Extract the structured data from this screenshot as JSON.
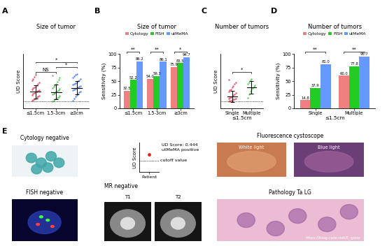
{
  "chart_data": [
    {
      "type": "strip",
      "panel": "A",
      "title": "Size of tumor",
      "ylabel": "UD Score",
      "categories": [
        "≤1.5cm",
        "1.5-3cm",
        "≥3cm"
      ],
      "ylim": [
        0.2,
        1.45
      ],
      "tick_labels": "x",
      "cutoff": 0.36,
      "groups": [
        {
          "color": "#E8556B",
          "mean": 0.58,
          "sd": 0.15,
          "values": [
            0.37,
            0.39,
            0.41,
            0.43,
            0.45,
            0.47,
            0.49,
            0.51,
            0.53,
            0.55,
            0.57,
            0.58,
            0.6,
            0.62,
            0.64,
            0.66,
            0.68,
            0.7,
            0.73,
            0.76,
            0.8,
            0.84,
            0.88,
            0.93,
            0.97
          ]
        },
        {
          "color": "#5CCB5C",
          "mean": 0.57,
          "sd": 0.17,
          "values": [
            0.36,
            0.38,
            0.4,
            0.42,
            0.44,
            0.46,
            0.49,
            0.52,
            0.54,
            0.56,
            0.58,
            0.6,
            0.62,
            0.65,
            0.67,
            0.7,
            0.73,
            0.77,
            0.81,
            0.86,
            0.91,
            0.95
          ]
        },
        {
          "color": "#5588EE",
          "mean": 0.67,
          "sd": 0.15,
          "values": [
            0.38,
            0.43,
            0.47,
            0.51,
            0.54,
            0.57,
            0.59,
            0.61,
            0.63,
            0.65,
            0.67,
            0.68,
            0.7,
            0.72,
            0.74,
            0.76,
            0.78,
            0.8,
            0.82,
            0.85,
            0.88,
            0.91,
            0.94,
            0.97,
            0.99
          ]
        }
      ],
      "significance": [
        {
          "from": 0,
          "to": 1,
          "label": "NS"
        },
        {
          "from": 1,
          "to": 2,
          "label": "*"
        },
        {
          "from": 0,
          "to": 2,
          "label": "*"
        }
      ]
    },
    {
      "type": "bar",
      "panel": "B",
      "title": "Size of tumor",
      "ylabel": "Sensitivity (%)",
      "categories": [
        "≤1.5cm",
        "1.5-3cm",
        "≥3cm"
      ],
      "ylim": [
        0,
        100
      ],
      "yticks": [
        0,
        25,
        50,
        75,
        100
      ],
      "data_labels": true,
      "legend": "upper center",
      "series": [
        {
          "name": "Cytology",
          "color": "#F08080",
          "values": [
            32.5,
            54.0,
            75.9
          ]
        },
        {
          "name": "FISH",
          "color": "#22CC22",
          "values": [
            52.2,
            59.3,
            83.5
          ]
        },
        {
          "name": "utMeMA",
          "color": "#6699FF",
          "values": [
            86.2,
            86.1,
            94.7
          ]
        }
      ],
      "significance": [
        {
          "category": 0,
          "label": "**"
        },
        {
          "category": 1,
          "label": "**"
        },
        {
          "category": 2,
          "label": "*"
        }
      ]
    },
    {
      "type": "strip",
      "panel": "C",
      "title": "Number of tumors",
      "ylabel": "UD Score",
      "xlabel": "≤1.5cm",
      "categories": [
        "Single",
        "Multiple"
      ],
      "ylim": [
        0.2,
        1.45
      ],
      "tick_labels": "x",
      "cutoff": 0.36,
      "groups": [
        {
          "color": "#E8556B",
          "mean": 0.47,
          "sd": 0.13,
          "values": [
            0.36,
            0.37,
            0.38,
            0.39,
            0.4,
            0.41,
            0.42,
            0.43,
            0.44,
            0.46,
            0.48,
            0.5,
            0.52,
            0.55,
            0.58,
            0.61,
            0.64,
            0.68,
            0.72,
            0.76,
            0.8,
            0.86
          ]
        },
        {
          "color": "#5CCB5C",
          "mean": 0.68,
          "sd": 0.14,
          "values": [
            0.44,
            0.52,
            0.58,
            0.63,
            0.67,
            0.7,
            0.73,
            0.76,
            0.8,
            0.84,
            0.88
          ]
        }
      ],
      "significance": [
        {
          "from": 0,
          "to": 1,
          "label": "*"
        }
      ]
    },
    {
      "type": "bar",
      "panel": "D",
      "title": "Number of tumors",
      "ylabel": "Sensitivity (%)",
      "xlabel": "≤1.5cm",
      "categories": [
        "Single",
        "Multiple"
      ],
      "ylim": [
        0,
        100
      ],
      "yticks": [
        0,
        25,
        50,
        75,
        100
      ],
      "data_labels": true,
      "legend": "upper center",
      "series": [
        {
          "name": "Cytology",
          "color": "#F08080",
          "values": [
            14.8,
            60.0
          ]
        },
        {
          "name": "FISH",
          "color": "#22CC22",
          "values": [
            37.9,
            77.8
          ]
        },
        {
          "name": "utMeMA",
          "color": "#6699FF",
          "values": [
            81.0,
            95.7
          ]
        }
      ],
      "significance": [
        {
          "category": 0,
          "label": "**"
        },
        {
          "category": 1,
          "label": "**"
        }
      ]
    },
    {
      "type": "scatter",
      "ylabel": "UD Score",
      "categories": [
        "Patient"
      ],
      "values": [
        0.444
      ],
      "color": "#E02020",
      "ylim": [
        0.2,
        0.6
      ],
      "tick_labels": "x",
      "cutoff": 0.36,
      "annotations": [
        "UD Score: 0.444",
        "utMeMA positive"
      ],
      "cutoff_label": "cutoff value"
    }
  ],
  "panel_e": {
    "panel": "E",
    "cytology": "Cytology negative",
    "fish": "FISH negative",
    "mr": "MR negative",
    "t1": "T1",
    "t2": "T2",
    "cystoscope": "Fluorescence cystoscope",
    "white": "White light",
    "blue": "Blue light",
    "pathology": "Pathology Ta LG",
    "watermark": "https://blog.csdn.net/E_gene"
  }
}
